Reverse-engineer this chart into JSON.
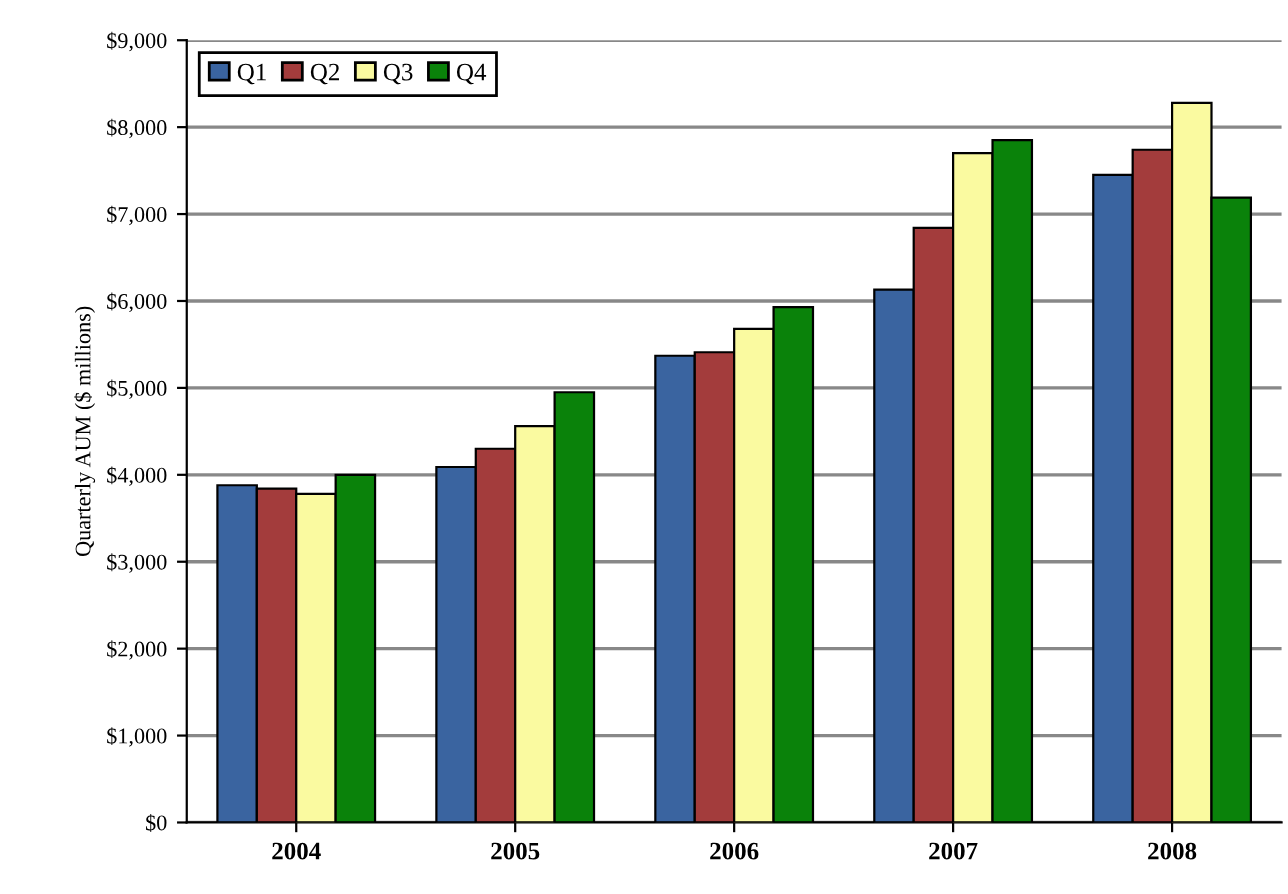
{
  "chart_data": {
    "type": "bar",
    "ylabel": "Quarterly AUM ($ millions)",
    "categories": [
      "2004",
      "2005",
      "2006",
      "2007",
      "2008"
    ],
    "series": [
      {
        "name": "Q1",
        "color": "#3a64a0",
        "values": [
          3880,
          4090,
          5370,
          6130,
          7450
        ]
      },
      {
        "name": "Q2",
        "color": "#a33c3c",
        "values": [
          3840,
          4300,
          5410,
          6840,
          7740
        ]
      },
      {
        "name": "Q3",
        "color": "#fafaa0",
        "values": [
          3780,
          4560,
          5680,
          7700,
          8280
        ]
      },
      {
        "name": "Q4",
        "color": "#0a820a",
        "values": [
          4000,
          4950,
          5930,
          7850,
          7190
        ]
      }
    ],
    "ylim": [
      0,
      9000
    ],
    "yticks": [
      {
        "value": 0,
        "label": "$0"
      },
      {
        "value": 1000,
        "label": "$1,000"
      },
      {
        "value": 2000,
        "label": "$2,000"
      },
      {
        "value": 3000,
        "label": "$3,000"
      },
      {
        "value": 4000,
        "label": "$4,000"
      },
      {
        "value": 5000,
        "label": "$5,000"
      },
      {
        "value": 6000,
        "label": "$6,000"
      },
      {
        "value": 7000,
        "label": "$7,000"
      },
      {
        "value": 8000,
        "label": "$8,000"
      },
      {
        "value": 9000,
        "label": "$9,000"
      }
    ],
    "grid": "y",
    "legend": "top left"
  }
}
